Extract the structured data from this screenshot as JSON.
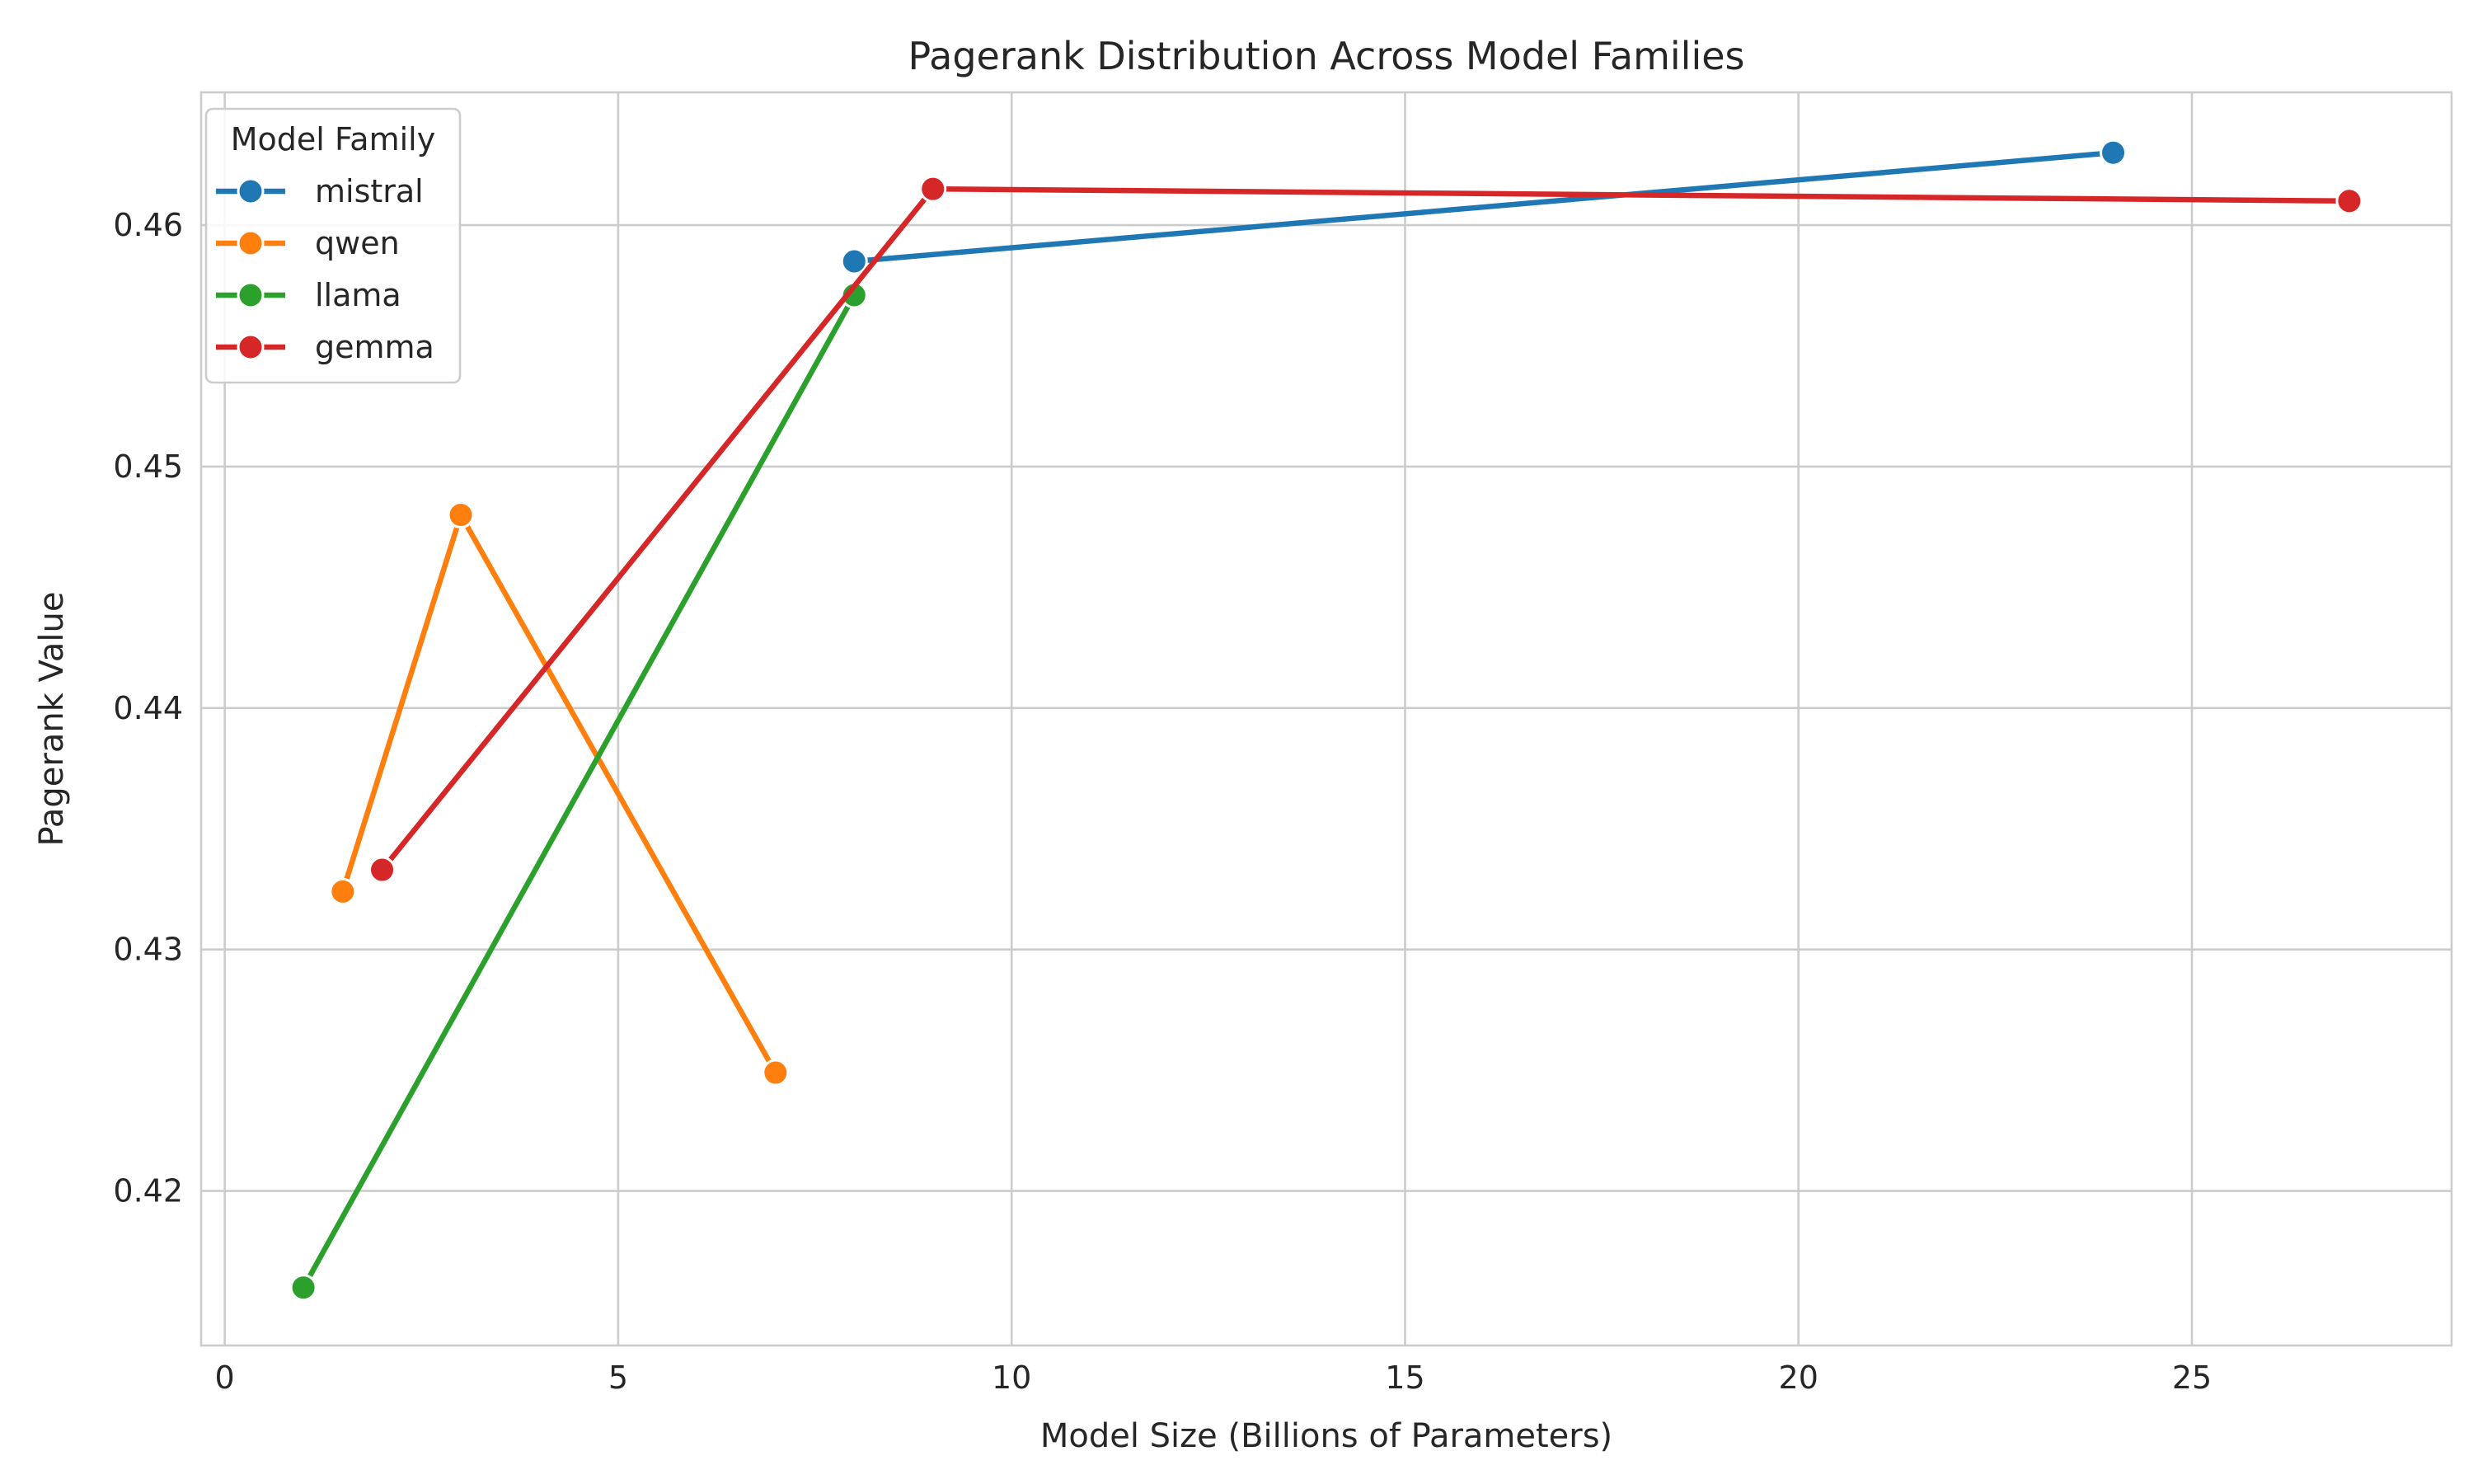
{
  "chart_data": {
    "type": "line",
    "title": "Pagerank Distribution Across Model Families",
    "xlabel": "Model Size (Billions of Parameters)",
    "ylabel": "Pagerank Value",
    "xlim": [
      -0.3,
      28.3
    ],
    "ylim": [
      0.4136,
      0.4655
    ],
    "x_ticks": [
      0,
      5,
      10,
      15,
      20,
      25
    ],
    "y_ticks": [
      0.42,
      0.43,
      0.44,
      0.45,
      0.46
    ],
    "x_tick_labels": [
      "0",
      "5",
      "10",
      "15",
      "20",
      "25"
    ],
    "y_tick_labels": [
      "0.42",
      "0.43",
      "0.44",
      "0.45",
      "0.46"
    ],
    "grid": true,
    "legend": {
      "title": "Model Family",
      "placement": "top-left"
    },
    "series": [
      {
        "name": "mistral",
        "color": "#1f77b4",
        "x": [
          8,
          24
        ],
        "y": [
          0.4585,
          0.463
        ]
      },
      {
        "name": "qwen",
        "color": "#ff7f0e",
        "x": [
          1.5,
          3,
          7
        ],
        "y": [
          0.4324,
          0.448,
          0.4249
        ]
      },
      {
        "name": "llama",
        "color": "#2ca02c",
        "x": [
          1,
          8
        ],
        "y": [
          0.416,
          0.4571
        ]
      },
      {
        "name": "gemma",
        "color": "#d62728",
        "x": [
          2,
          9,
          27
        ],
        "y": [
          0.4333,
          0.4615,
          0.461
        ]
      }
    ]
  }
}
